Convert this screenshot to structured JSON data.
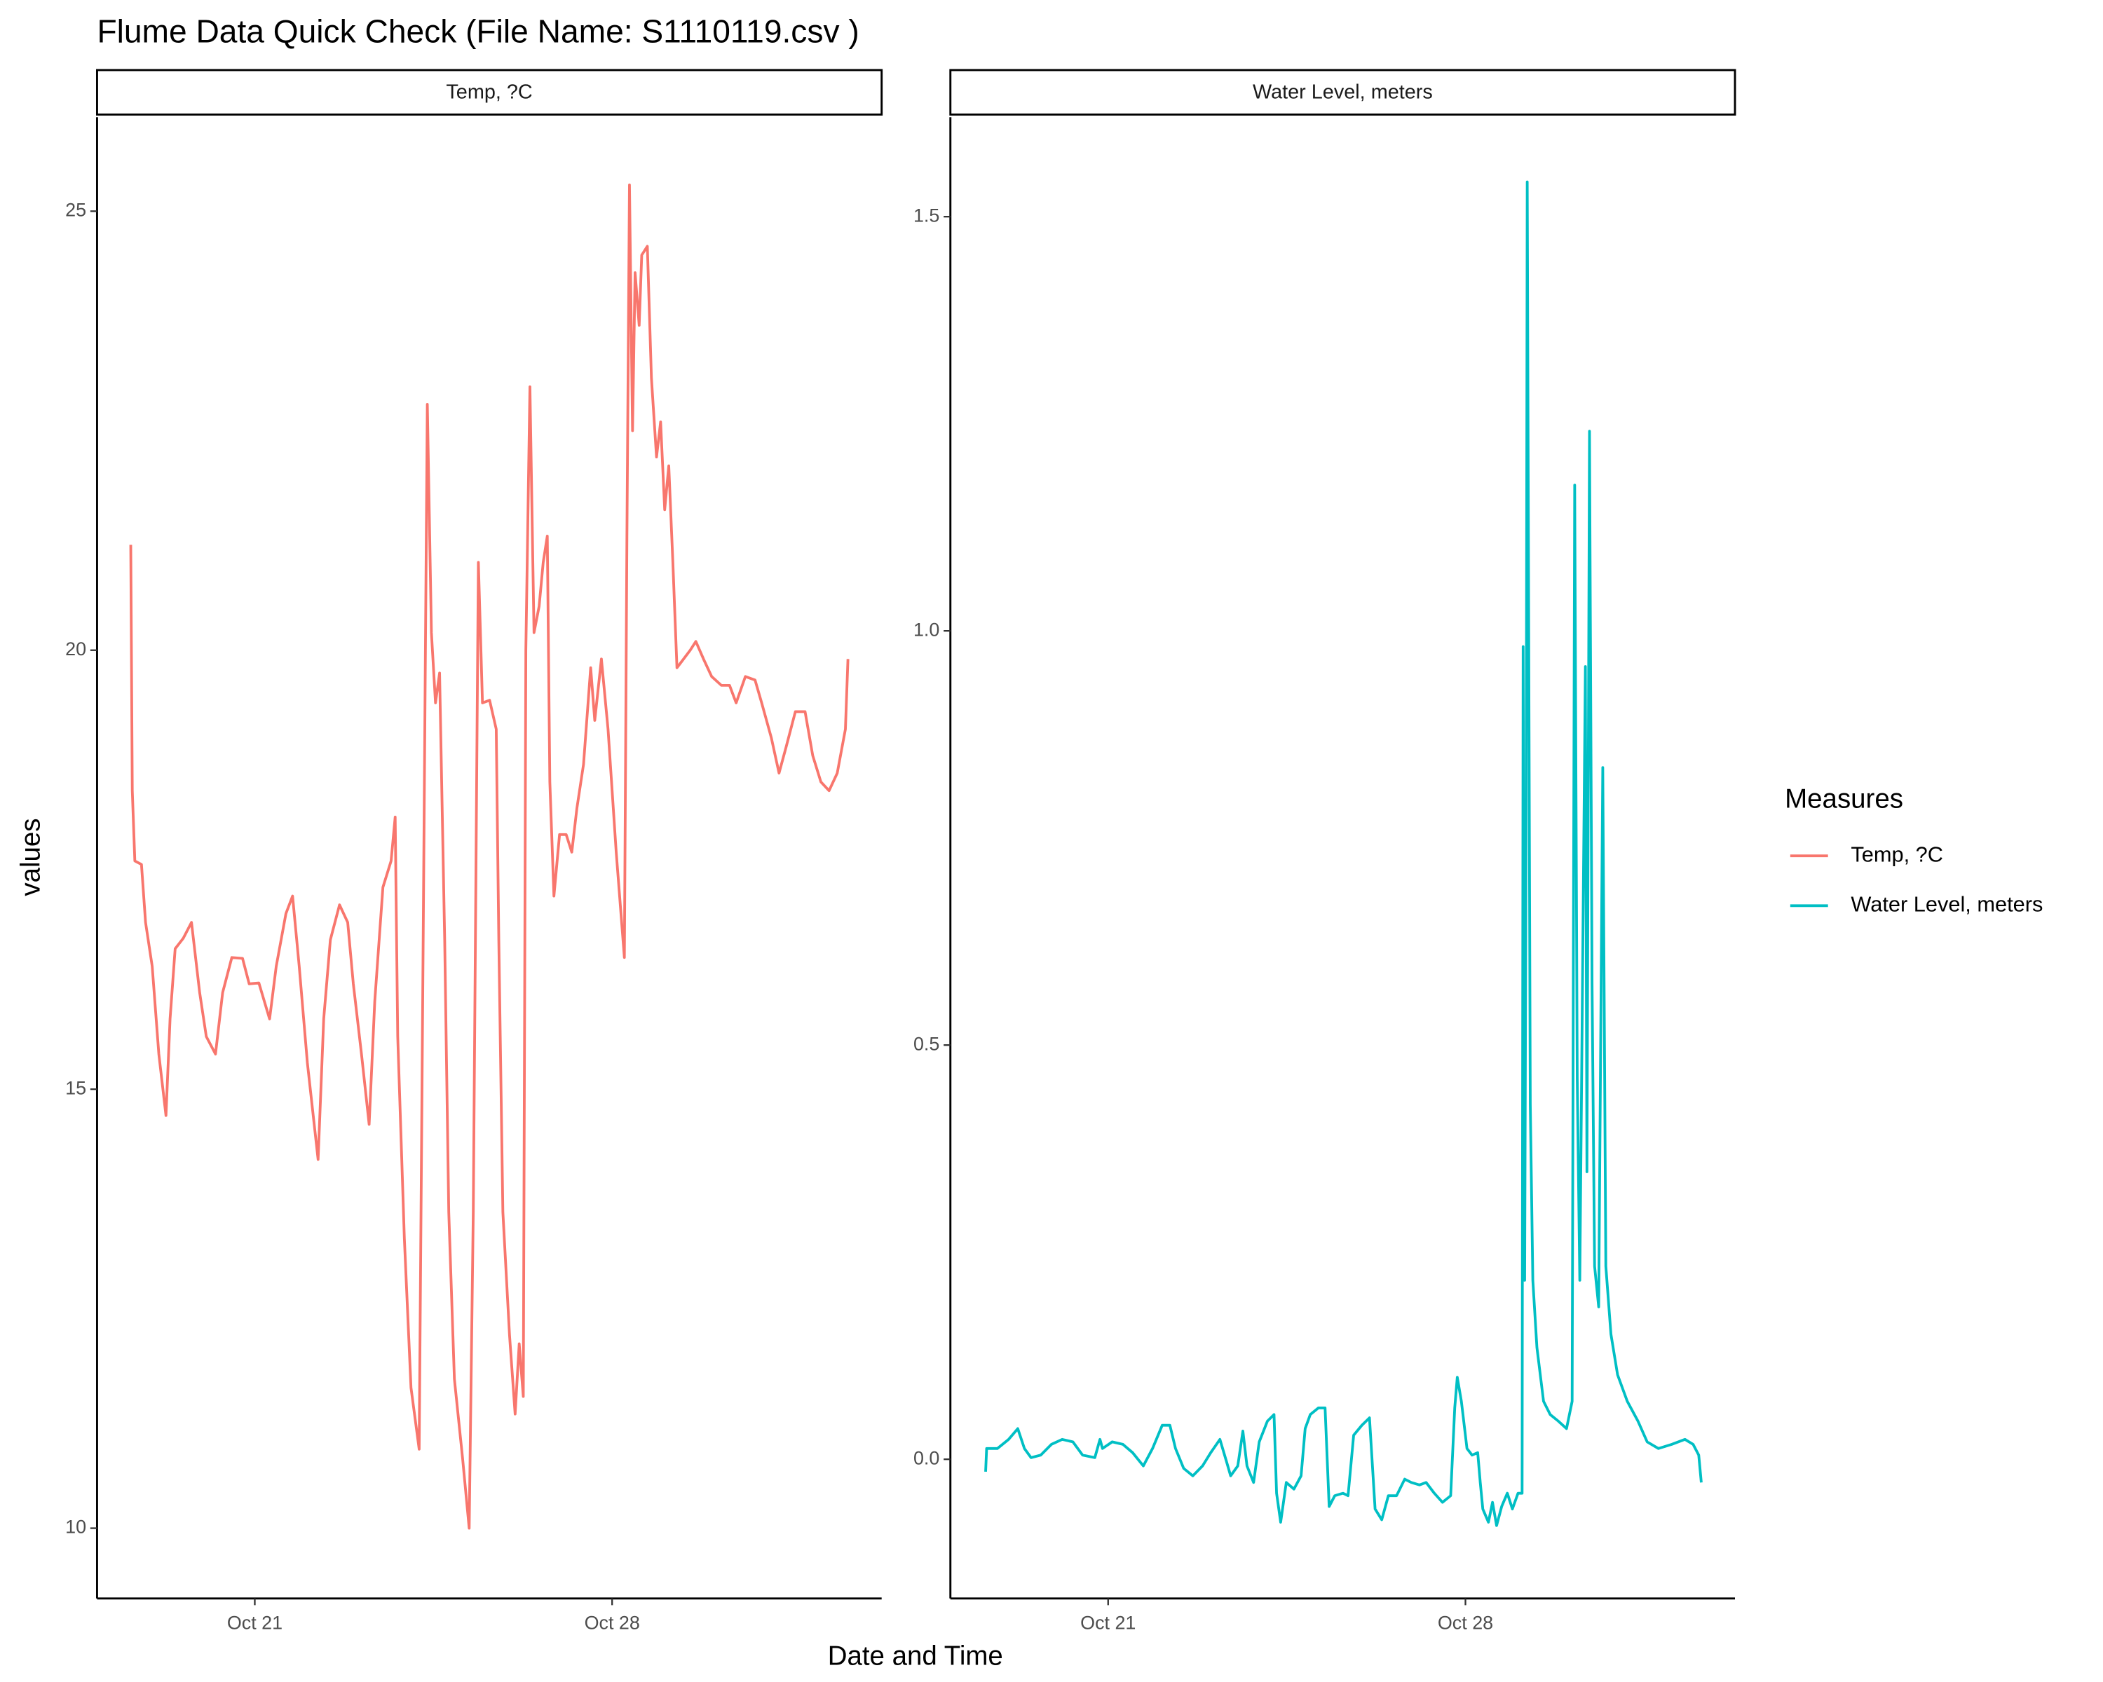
{
  "chart_data": {
    "type": "line",
    "title": "Flume Data Quick Check (File Name: S1110119.csv )",
    "xlabel": "Date and Time",
    "ylabel": "values",
    "legend_title": "Measures",
    "xlim": [
      17.91,
      33.28
    ],
    "xticks": [
      {
        "value": 21,
        "label": "Oct 21"
      },
      {
        "value": 28,
        "label": "Oct 28"
      }
    ],
    "facets": [
      {
        "name": "Temp, ?C",
        "color": "#F8766D",
        "ylim": [
          9.2,
          26.07
        ],
        "yticks": [
          10,
          15,
          20,
          25
        ],
        "x": [
          18.57,
          18.6,
          18.65,
          18.78,
          18.86,
          18.99,
          19.12,
          19.26,
          19.34,
          19.44,
          19.6,
          19.76,
          19.92,
          20.05,
          20.23,
          20.37,
          20.55,
          20.76,
          20.89,
          21.08,
          21.29,
          21.42,
          21.61,
          21.74,
          21.87,
          22.03,
          22.24,
          22.35,
          22.48,
          22.66,
          22.82,
          22.93,
          23.09,
          23.24,
          23.35,
          23.51,
          23.67,
          23.75,
          23.8,
          23.93,
          24.06,
          24.22,
          24.3,
          24.38,
          24.46,
          24.54,
          24.62,
          24.72,
          24.8,
          24.91,
          25.07,
          25.2,
          25.28,
          25.38,
          25.46,
          25.6,
          25.73,
          25.78,
          25.86,
          25.99,
          26.1,
          26.18,
          26.26,
          26.31,
          26.39,
          26.47,
          26.57,
          26.65,
          26.73,
          26.78,
          26.86,
          26.97,
          27.1,
          27.21,
          27.31,
          27.44,
          27.58,
          27.66,
          27.79,
          27.92,
          28.08,
          28.24,
          28.29,
          28.34,
          28.4,
          28.45,
          28.53,
          28.58,
          28.69,
          28.77,
          28.87,
          28.95,
          29.03,
          29.11,
          29.19,
          29.27,
          29.4,
          29.53,
          29.64,
          29.79,
          29.95,
          30.14,
          30.3,
          30.43,
          30.61,
          30.8,
          30.93,
          31.12,
          31.27,
          31.41,
          31.59,
          31.78,
          31.93,
          32.09,
          32.25,
          32.41,
          32.57,
          32.62
        ],
        "values": [
          21.2,
          18.4,
          17.6,
          17.56,
          16.9,
          16.4,
          15.4,
          14.7,
          15.8,
          16.6,
          16.72,
          16.9,
          16.1,
          15.6,
          15.4,
          16.1,
          16.5,
          16.49,
          16.2,
          16.21,
          15.8,
          16.4,
          17.0,
          17.2,
          16.4,
          15.3,
          14.2,
          15.8,
          16.7,
          17.1,
          16.9,
          16.2,
          15.4,
          14.6,
          16.0,
          17.3,
          17.6,
          18.1,
          15.6,
          13.3,
          11.6,
          10.9,
          16.8,
          22.8,
          20.2,
          19.4,
          19.74,
          16.7,
          13.6,
          11.7,
          10.8,
          10.0,
          13.6,
          21.0,
          19.4,
          19.43,
          19.1,
          16.7,
          13.6,
          12.2,
          11.3,
          12.1,
          11.5,
          20.0,
          23.0,
          20.2,
          20.5,
          21.0,
          21.3,
          18.5,
          17.2,
          17.9,
          17.9,
          17.7,
          18.2,
          18.7,
          19.8,
          19.2,
          19.9,
          19.1,
          17.7,
          16.5,
          21.3,
          25.3,
          22.5,
          24.3,
          23.7,
          24.5,
          24.6,
          23.1,
          22.2,
          22.6,
          21.6,
          22.1,
          21.0,
          19.8,
          19.9,
          20.0,
          20.1,
          19.9,
          19.7,
          19.6,
          19.6,
          19.4,
          19.7,
          19.66,
          19.4,
          19.0,
          18.6,
          18.9,
          19.3,
          19.3,
          18.8,
          18.5,
          18.4,
          18.6,
          19.1,
          19.9
        ]
      },
      {
        "name": "Water Level, meters",
        "color": "#00BFC4",
        "ylim": [
          -0.168,
          1.62
        ],
        "yticks": [
          {
            "value": 0,
            "label": "0.0"
          },
          0.5,
          {
            "value": 1,
            "label": "1.0"
          },
          1.5
        ],
        "x": [
          18.6,
          18.62,
          18.83,
          19.05,
          19.23,
          19.36,
          19.49,
          19.68,
          19.89,
          20.1,
          20.31,
          20.5,
          20.74,
          20.84,
          20.89,
          21.08,
          21.29,
          21.48,
          21.69,
          21.87,
          22.06,
          22.21,
          22.32,
          22.48,
          22.66,
          22.85,
          23.01,
          23.19,
          23.32,
          23.4,
          23.54,
          23.64,
          23.72,
          23.85,
          23.96,
          24.12,
          24.25,
          24.3,
          24.38,
          24.49,
          24.64,
          24.78,
          24.86,
          24.96,
          25.12,
          25.25,
          25.33,
          25.44,
          25.6,
          25.7,
          25.81,
          25.97,
          26.12,
          26.23,
          26.36,
          26.49,
          26.65,
          26.81,
          26.94,
          27.1,
          27.23,
          27.39,
          27.55,
          27.71,
          27.79,
          27.84,
          27.92,
          28.03,
          28.13,
          28.24,
          28.29,
          28.34,
          28.45,
          28.53,
          28.61,
          28.71,
          28.82,
          28.92,
          29.03,
          29.11,
          29.13,
          29.16,
          29.19,
          29.21,
          29.27,
          29.32,
          29.4,
          29.53,
          29.66,
          29.82,
          29.98,
          30.09,
          30.14,
          30.19,
          30.24,
          30.3,
          30.35,
          30.38,
          30.43,
          30.48,
          30.53,
          30.61,
          30.69,
          30.75,
          30.85,
          30.98,
          31.17,
          31.38,
          31.56,
          31.78,
          32.04,
          32.3,
          32.46,
          32.57,
          32.62
        ],
        "values": [
          -0.015,
          0.013,
          0.013,
          0.024,
          0.037,
          0.013,
          0.002,
          0.005,
          0.018,
          0.024,
          0.021,
          0.005,
          0.002,
          0.024,
          0.013,
          0.021,
          0.018,
          0.008,
          -0.008,
          0.013,
          0.041,
          0.041,
          0.013,
          -0.011,
          -0.02,
          -0.008,
          0.008,
          0.024,
          -0.003,
          -0.02,
          -0.008,
          0.034,
          -0.008,
          -0.028,
          0.021,
          0.046,
          0.054,
          -0.041,
          -0.076,
          -0.028,
          -0.036,
          -0.02,
          0.037,
          0.054,
          0.062,
          0.062,
          -0.057,
          -0.044,
          -0.041,
          -0.044,
          0.029,
          0.041,
          0.05,
          -0.06,
          -0.073,
          -0.044,
          -0.044,
          -0.024,
          -0.028,
          -0.031,
          -0.028,
          -0.041,
          -0.052,
          -0.044,
          0.062,
          0.099,
          0.07,
          0.013,
          0.005,
          0.008,
          -0.028,
          -0.06,
          -0.076,
          -0.052,
          -0.08,
          -0.057,
          -0.041,
          -0.06,
          -0.041,
          -0.041,
          0.981,
          0.216,
          0.786,
          1.542,
          0.428,
          0.216,
          0.135,
          0.07,
          0.054,
          0.046,
          0.037,
          0.07,
          1.176,
          0.46,
          0.216,
          0.623,
          0.957,
          0.347,
          1.241,
          0.574,
          0.233,
          0.184,
          0.835,
          0.233,
          0.151,
          0.102,
          0.07,
          0.046,
          0.021,
          0.013,
          0.018,
          0.024,
          0.018,
          0.005,
          -0.028
        ]
      }
    ]
  }
}
